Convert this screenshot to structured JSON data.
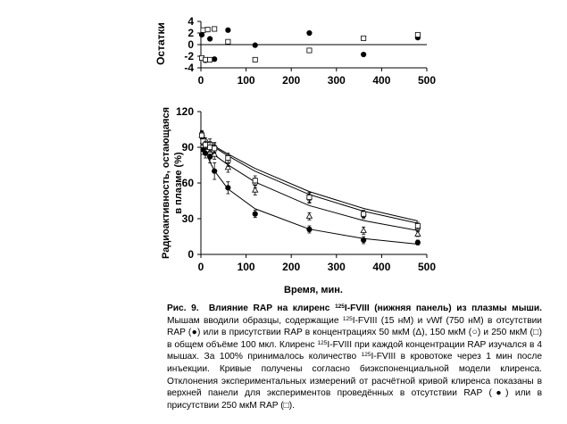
{
  "residual_panel": {
    "ylabel": "Остатки",
    "xlim": [
      0,
      500
    ],
    "ylim": [
      -4,
      4
    ],
    "y_ticks": [
      "4",
      "2",
      "0",
      "-2",
      "-4"
    ],
    "x_ticks": [
      "0",
      "100",
      "200",
      "300",
      "400",
      "500"
    ]
  },
  "main_panel": {
    "ylabel_line1": "Радиоактивность, остающаяся",
    "ylabel_line2": "в плазме (%)",
    "xlabel": "Время, мин.",
    "xlim": [
      0,
      500
    ],
    "ylim": [
      0,
      120
    ],
    "y_ticks": [
      "120",
      "90",
      "60",
      "30",
      "0"
    ],
    "x_ticks": [
      "0",
      "100",
      "200",
      "300",
      "400",
      "500"
    ]
  },
  "chart_data": [
    {
      "type": "scatter",
      "panel": "residuals",
      "ylabel": "Остатки",
      "xlim": [
        0,
        500
      ],
      "ylim": [
        -4,
        4
      ],
      "series": [
        {
          "name": "RAP (●)",
          "marker": "filled-circle",
          "x": [
            2,
            10,
            20,
            30,
            60,
            120,
            240,
            360,
            480
          ],
          "y": [
            1.7,
            -2.7,
            1.0,
            -2.5,
            2.5,
            -0.1,
            2.0,
            -1.7,
            1.2
          ]
        },
        {
          "name": "RAP (□)",
          "marker": "open-square",
          "x": [
            2,
            5,
            10,
            15,
            20,
            30,
            60,
            120,
            240,
            360,
            480
          ],
          "y": [
            -2.3,
            2.5,
            -2.6,
            2.6,
            -2.6,
            2.7,
            0.5,
            -2.6,
            -1.0,
            1.1,
            1.7
          ]
        }
      ]
    },
    {
      "type": "scatter",
      "panel": "clearance",
      "ylabel": "Радиоактивность, остающаяся в плазме (%)",
      "xlabel": "Время, мин.",
      "xlim": [
        0,
        500
      ],
      "ylim": [
        0,
        120
      ],
      "series": [
        {
          "name": "RAP (●)",
          "marker": "filled-circle",
          "x": [
            2,
            5,
            10,
            20,
            30,
            60,
            120,
            240,
            360,
            480
          ],
          "y": [
            100,
            88,
            85,
            82,
            70,
            56,
            34,
            21,
            12,
            10
          ],
          "err": [
            3,
            4,
            4,
            5,
            7,
            5,
            3,
            3,
            3,
            2
          ],
          "fit": [
            100,
            93,
            87,
            77.7,
            70.1,
            54.9,
            38.3,
            21.2,
            13.3,
            8.6
          ]
        },
        {
          "name": "50 мкМ (Δ)",
          "marker": "open-triangle",
          "x": [
            2,
            5,
            10,
            20,
            30,
            60,
            120,
            240,
            360,
            480
          ],
          "y": [
            100,
            95,
            91,
            86,
            84,
            73,
            54,
            32,
            20,
            17
          ],
          "err": [
            3,
            3,
            3,
            4,
            4,
            4,
            4,
            3,
            3,
            2
          ],
          "fit": [
            100,
            96.1,
            92.5,
            87.2,
            83.5,
            75.2,
            60.8,
            41,
            28.4,
            20
          ]
        },
        {
          "name": "150 мкМ (○)",
          "marker": "open-circle",
          "x": [
            2,
            5,
            10,
            20,
            30,
            60,
            120,
            240,
            360,
            480
          ],
          "y": [
            101,
            97,
            95,
            93,
            90,
            78,
            60,
            47,
            33,
            22
          ],
          "err": [
            3,
            3,
            3,
            4,
            4,
            4,
            4,
            4,
            3,
            2
          ],
          "fit": [
            100,
            97.9,
            95.7,
            92.6,
            89.9,
            82.8,
            69.9,
            50.3,
            36.3,
            26.2
          ]
        },
        {
          "name": "250 мкМ (□)",
          "marker": "open-square",
          "x": [
            2,
            5,
            10,
            20,
            30,
            60,
            120,
            240,
            360,
            480
          ],
          "y": [
            100,
            95,
            92,
            90,
            89,
            81,
            62,
            48,
            34,
            24
          ],
          "err": [
            3,
            3,
            3,
            4,
            4,
            4,
            4,
            4,
            3,
            3
          ],
          "fit": [
            100,
            98.1,
            96.1,
            93.3,
            90.9,
            84.3,
            72.2,
            52.8,
            38.6,
            28.1
          ]
        }
      ]
    }
  ],
  "caption": {
    "fig_label": "Рис. 9.",
    "title_a": "Влияние RAP на клиренс ",
    "title_sup": "125",
    "title_b": "I-FVIII (нижняя панель) из плазмы мыши.",
    "s1": " Мышам вводили образцы, содержащие ",
    "sup1": "125",
    "s2": "I-FVIII (15 нМ) и vWf (750 нМ) в отсутствии RAP (●) или в присутствии RAP в концентрациях 50 мкМ (Δ), 150 мкМ (○) и 250 мкМ (□) в общем объёме 100 мкл. Клиренс ",
    "sup2": "125",
    "s3": "I-FVIII при каждой концентрации RAP изучался в 4 мышах. За 100% принималось количество ",
    "sup3": "125",
    "s4": "I-FVIII в кровотоке через 1 мин после инъекции.  Кривые получены согласно биэкспоненциальной модели клиренса.   Отклонения экспериментальных измерений от расчётной кривой клиренса показаны в верхней панели для экспериментов проведённых в отсутствии RAP (●) или в присутствии 250 мкМ RAP (□)."
  }
}
